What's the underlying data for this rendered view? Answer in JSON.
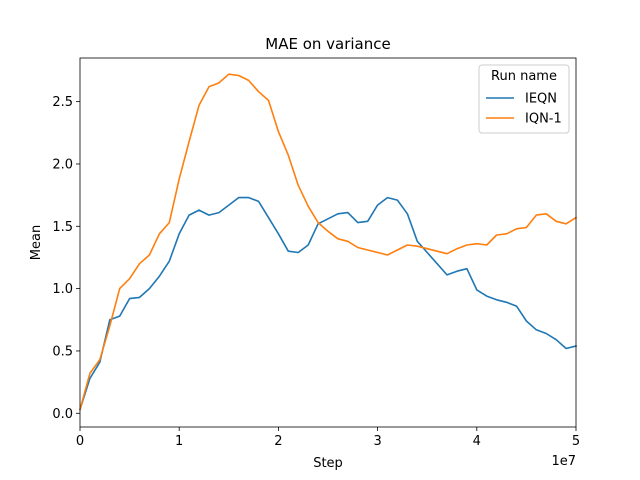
{
  "chart_data": {
    "type": "line",
    "title": "MAE on variance",
    "xlabel": "Step",
    "ylabel": "Mean",
    "x_offset_label": "1e7",
    "xlim": [
      0,
      50000000
    ],
    "ylim": [
      -0.11,
      2.85
    ],
    "x_ticks": [
      0,
      10000000,
      20000000,
      30000000,
      40000000,
      50000000
    ],
    "x_tick_labels": [
      "0",
      "1",
      "2",
      "3",
      "4",
      "5"
    ],
    "y_ticks": [
      0.0,
      0.5,
      1.0,
      1.5,
      2.0,
      2.5
    ],
    "y_tick_labels": [
      "0.0",
      "0.5",
      "1.0",
      "1.5",
      "2.0",
      "2.5"
    ],
    "grid": false,
    "legend": {
      "title": "Run name",
      "position": "top-right"
    },
    "series": [
      {
        "name": "IEQN",
        "color": "#1f77b4",
        "x": [
          0,
          1000000,
          2000000,
          3000000,
          4000000,
          5000000,
          6000000,
          7000000,
          8000000,
          9000000,
          10000000,
          11000000,
          12000000,
          13000000,
          14000000,
          15000000,
          16000000,
          17000000,
          18000000,
          19000000,
          20000000,
          21000000,
          22000000,
          23000000,
          24000000,
          25000000,
          26000000,
          27000000,
          28000000,
          29000000,
          30000000,
          31000000,
          32000000,
          33000000,
          34000000,
          35000000,
          36000000,
          37000000,
          38000000,
          39000000,
          40000000,
          41000000,
          42000000,
          43000000,
          44000000,
          45000000,
          46000000,
          47000000,
          48000000,
          49000000,
          50000000
        ],
        "y": [
          0.03,
          0.28,
          0.41,
          0.75,
          0.78,
          0.92,
          0.93,
          1.0,
          1.1,
          1.22,
          1.44,
          1.59,
          1.63,
          1.59,
          1.61,
          1.67,
          1.73,
          1.73,
          1.7,
          1.57,
          1.44,
          1.3,
          1.29,
          1.35,
          1.52,
          1.56,
          1.6,
          1.61,
          1.53,
          1.54,
          1.67,
          1.73,
          1.71,
          1.6,
          1.38,
          1.29,
          1.2,
          1.11,
          1.14,
          1.16,
          0.99,
          0.94,
          0.91,
          0.89,
          0.86,
          0.74,
          0.67,
          0.64,
          0.59,
          0.52,
          0.54
        ]
      },
      {
        "name": "IQN-1",
        "color": "#ff7f0e",
        "x": [
          0,
          1000000,
          2000000,
          3000000,
          4000000,
          5000000,
          6000000,
          7000000,
          8000000,
          9000000,
          10000000,
          11000000,
          12000000,
          13000000,
          14000000,
          15000000,
          16000000,
          17000000,
          18000000,
          19000000,
          20000000,
          21000000,
          22000000,
          23000000,
          24000000,
          25000000,
          26000000,
          27000000,
          28000000,
          29000000,
          30000000,
          31000000,
          32000000,
          33000000,
          34000000,
          35000000,
          36000000,
          37000000,
          38000000,
          39000000,
          40000000,
          41000000,
          42000000,
          43000000,
          44000000,
          45000000,
          46000000,
          47000000,
          48000000,
          49000000,
          50000000
        ],
        "y": [
          0.03,
          0.32,
          0.43,
          0.7,
          1.0,
          1.08,
          1.2,
          1.27,
          1.44,
          1.53,
          1.88,
          2.18,
          2.47,
          2.62,
          2.65,
          2.72,
          2.71,
          2.67,
          2.58,
          2.51,
          2.26,
          2.07,
          1.83,
          1.66,
          1.53,
          1.46,
          1.4,
          1.38,
          1.33,
          1.31,
          1.29,
          1.27,
          1.31,
          1.35,
          1.34,
          1.32,
          1.3,
          1.28,
          1.32,
          1.35,
          1.36,
          1.35,
          1.43,
          1.44,
          1.48,
          1.49,
          1.59,
          1.6,
          1.54,
          1.52,
          1.57
        ]
      }
    ]
  }
}
